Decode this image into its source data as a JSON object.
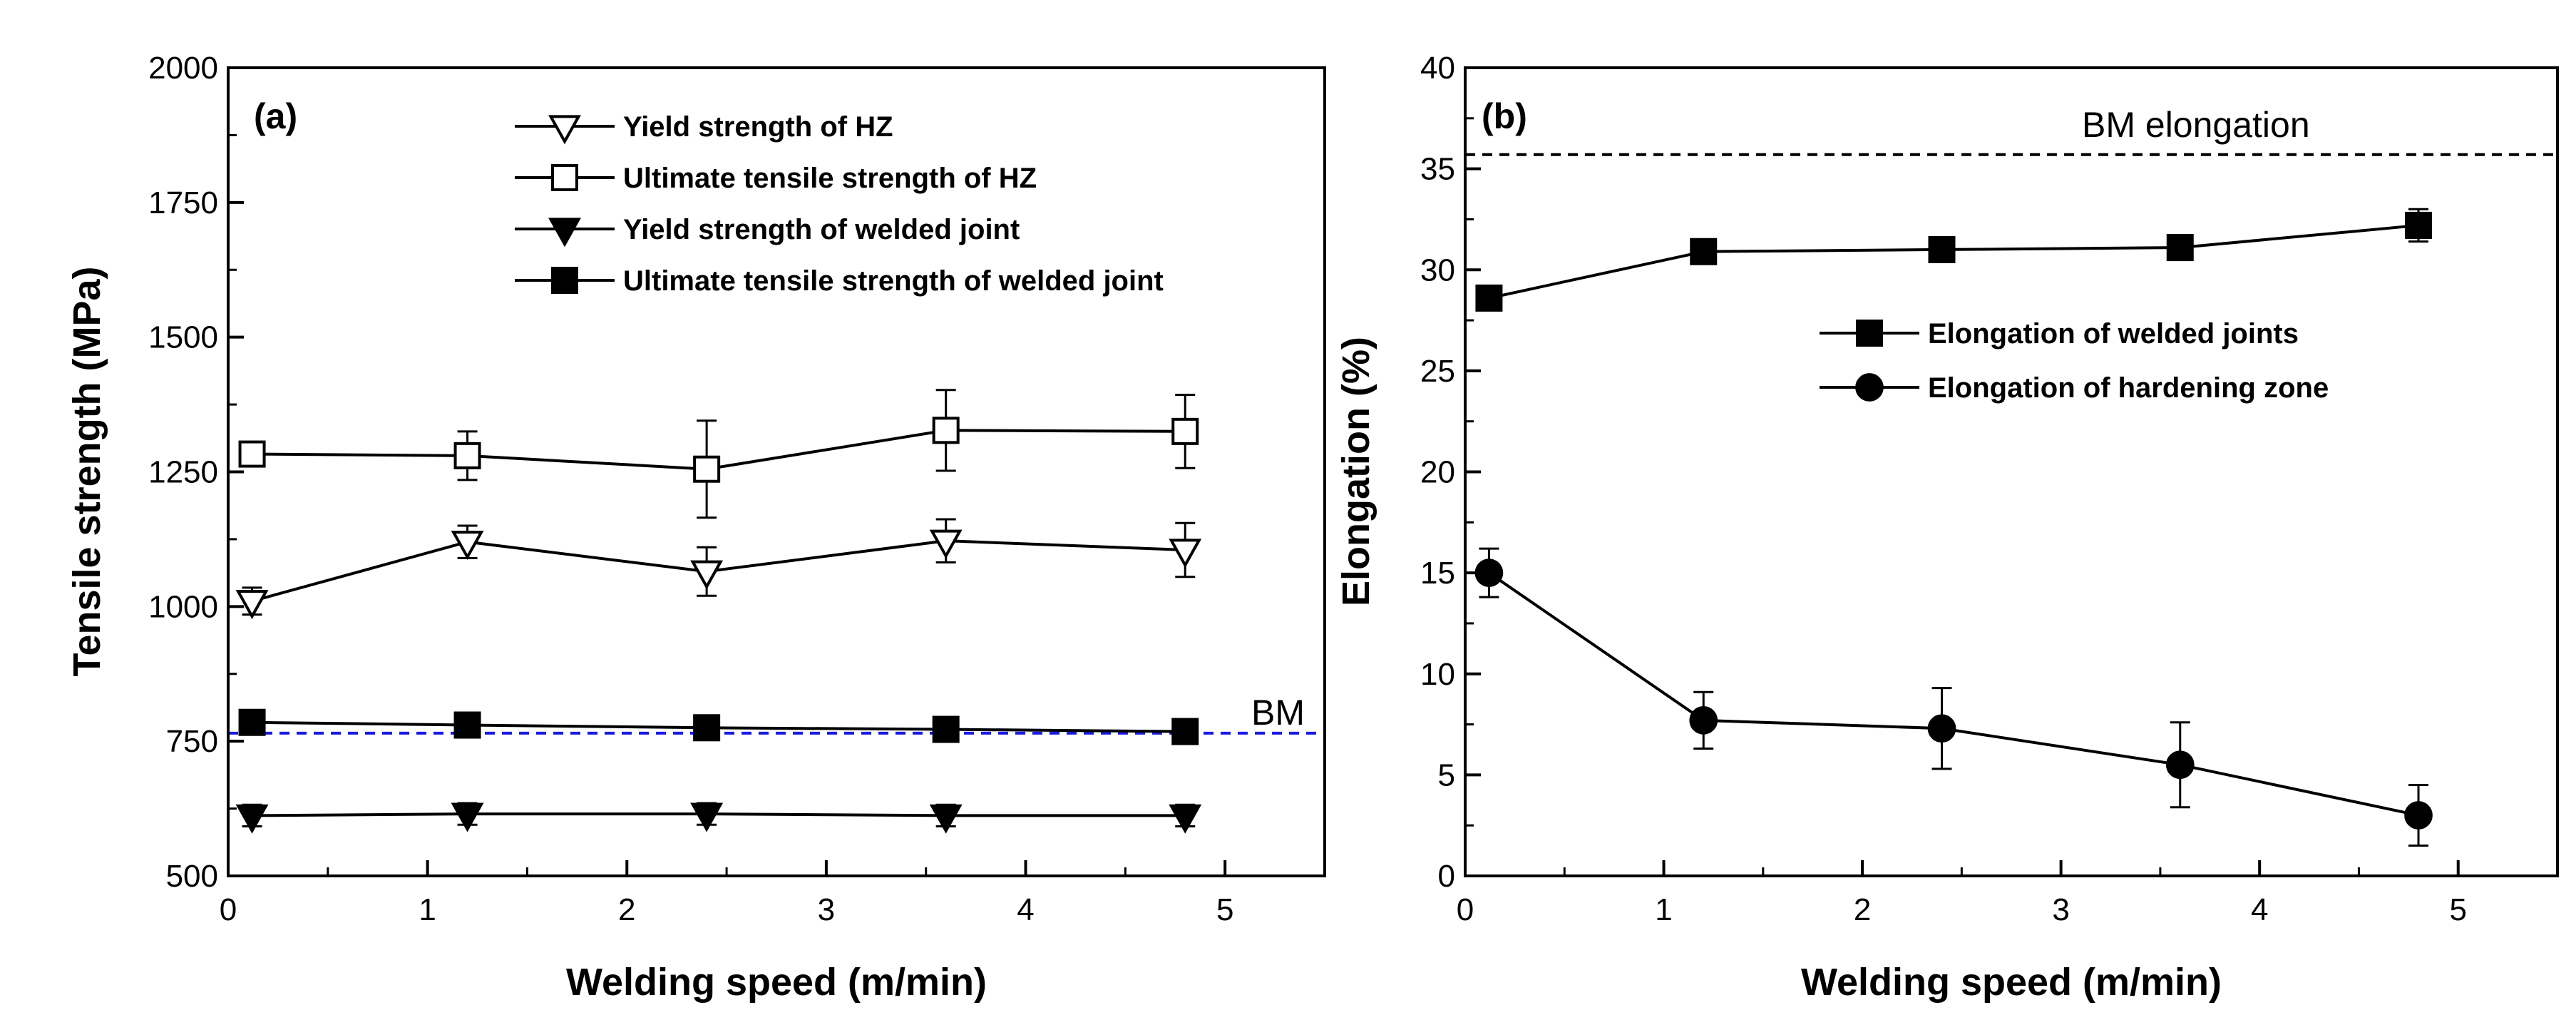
{
  "chart_data": [
    {
      "type": "line",
      "panel_label": "(a)",
      "xlabel": "Welding speed (m/min)",
      "ylabel": "Tensile strength (MPa)",
      "xlim": [
        0,
        5.5
      ],
      "ylim": [
        500,
        2000
      ],
      "xticks": [
        "0",
        "1",
        "2",
        "3",
        "4",
        "5"
      ],
      "yticks": [
        "500",
        "750",
        "1000",
        "1250",
        "1500",
        "1750",
        "2000"
      ],
      "series": [
        {
          "name": "Yield strength of HZ",
          "marker": "triangle-down-open",
          "x": [
            0.12,
            1.2,
            2.4,
            3.6,
            4.8
          ],
          "y": [
            1010,
            1120,
            1065,
            1122,
            1105
          ],
          "err": [
            25,
            30,
            45,
            40,
            50
          ]
        },
        {
          "name": "Ultimate tensile strength of HZ",
          "marker": "square-open",
          "x": [
            0.12,
            1.2,
            2.4,
            3.6,
            4.8
          ],
          "y": [
            1283,
            1280,
            1255,
            1327,
            1325
          ],
          "err": [
            12,
            45,
            90,
            75,
            68
          ]
        },
        {
          "name": "Yield strength of welded joint",
          "marker": "triangle-down-filled",
          "x": [
            0.12,
            1.2,
            2.4,
            3.6,
            4.8
          ],
          "y": [
            612,
            615,
            615,
            612,
            612
          ],
          "err": [
            20,
            20,
            20,
            20,
            20
          ]
        },
        {
          "name": "Ultimate tensile strength of welded joint",
          "marker": "square-filled",
          "x": [
            0.12,
            1.2,
            2.4,
            3.6,
            4.8
          ],
          "y": [
            785,
            780,
            775,
            772,
            768
          ],
          "err": [
            10,
            10,
            10,
            10,
            10
          ]
        }
      ],
      "reference_line": {
        "label": "BM",
        "y": 765,
        "color": "#1a1ae6"
      }
    },
    {
      "type": "line",
      "panel_label": "(b)",
      "xlabel": "Welding speed (m/min)",
      "ylabel": "Elongation (%)",
      "xlim": [
        0,
        5.5
      ],
      "ylim": [
        0,
        40
      ],
      "xticks": [
        "0",
        "1",
        "2",
        "3",
        "4",
        "5"
      ],
      "yticks": [
        "0",
        "5",
        "10",
        "15",
        "20",
        "25",
        "30",
        "35",
        "40"
      ],
      "series": [
        {
          "name": "Elongation of welded joints",
          "marker": "square-filled",
          "x": [
            0.12,
            1.2,
            2.4,
            3.6,
            4.8
          ],
          "y": [
            28.6,
            30.9,
            31.0,
            31.1,
            32.2
          ],
          "err": [
            0.3,
            0.6,
            0.5,
            0.6,
            0.8
          ]
        },
        {
          "name": "Elongation of hardening zone",
          "marker": "circle-filled",
          "x": [
            0.12,
            1.2,
            2.4,
            3.6,
            4.8
          ],
          "y": [
            15.0,
            7.7,
            7.3,
            5.5,
            3.0
          ],
          "err": [
            1.2,
            1.4,
            2.0,
            2.1,
            1.5
          ]
        }
      ],
      "reference_line": {
        "label": "BM elongation",
        "y": 35.7,
        "color": "#000000"
      }
    }
  ]
}
